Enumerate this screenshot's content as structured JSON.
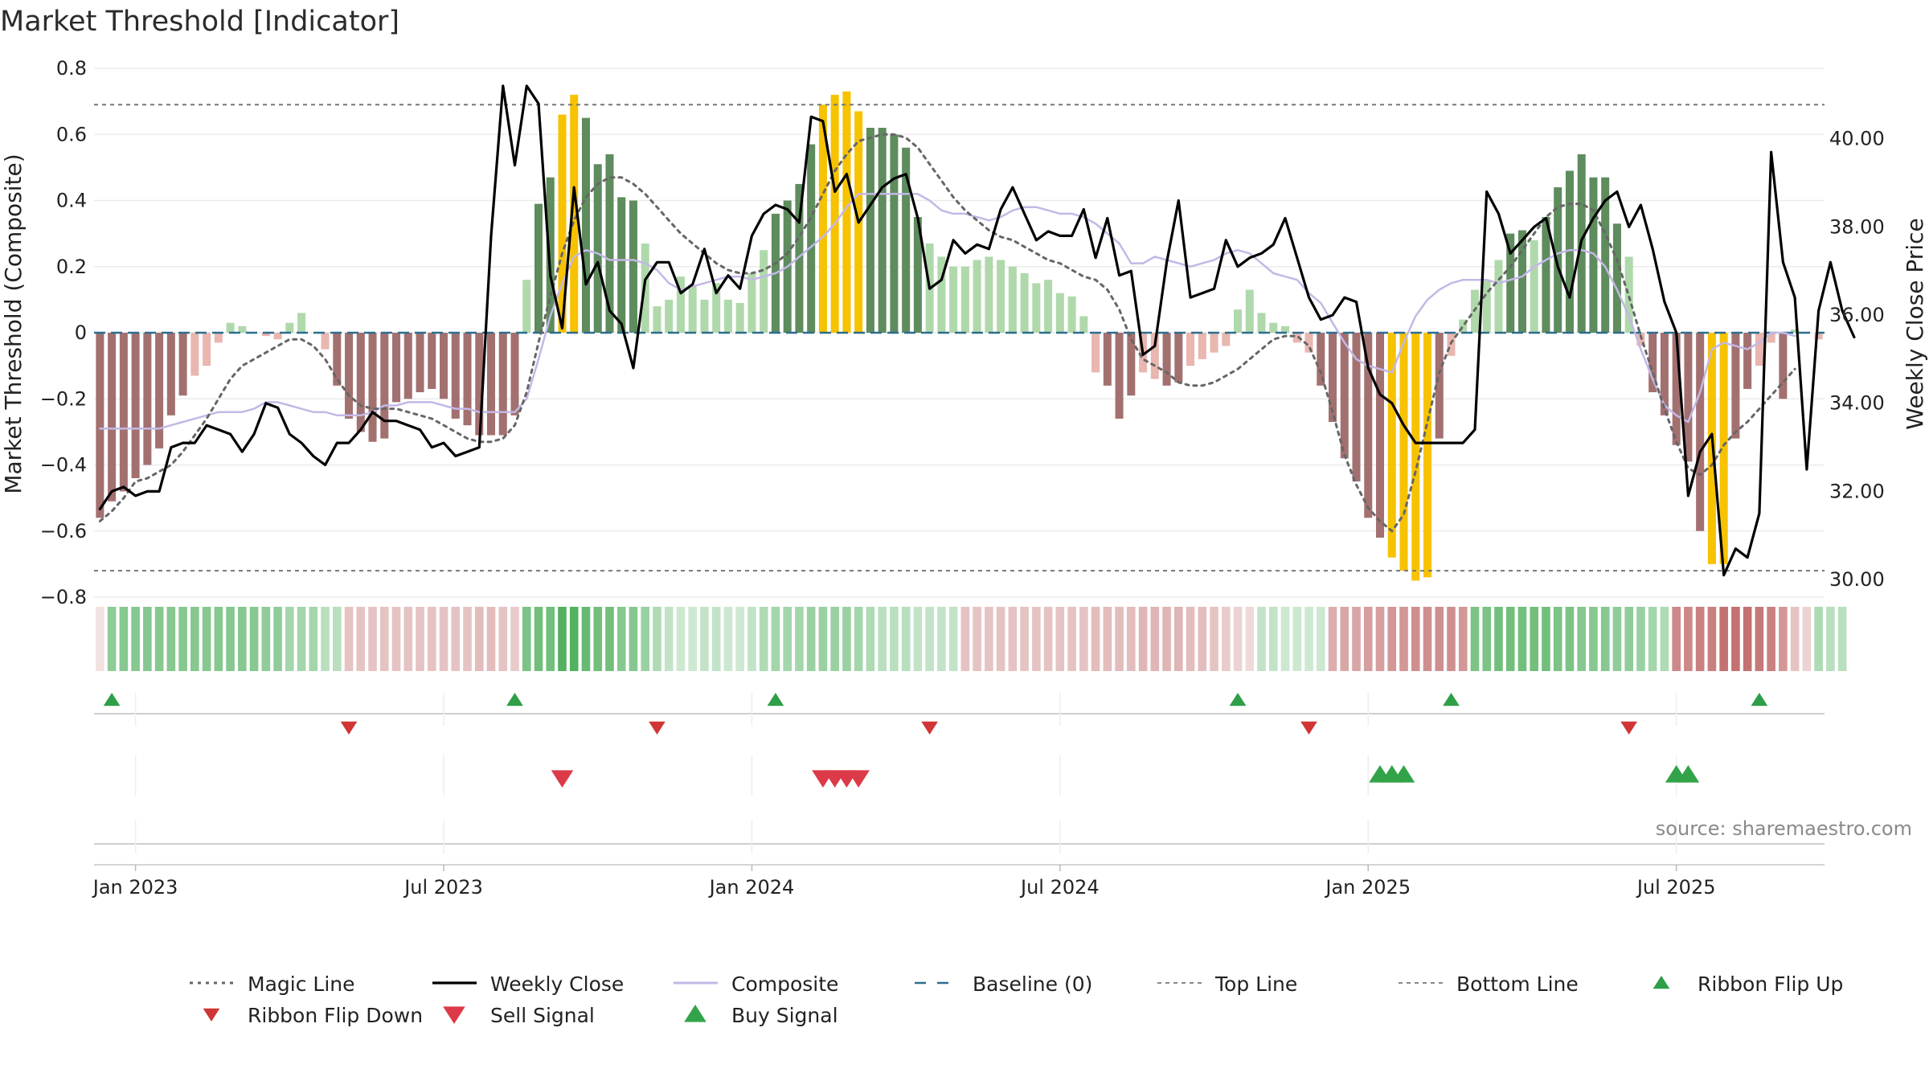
{
  "chart_data": {
    "type": "line",
    "title": "Market Threshold [Indicator]",
    "ylabel": "Market Threshold (Composite)",
    "y2label": "Weekly Close Price",
    "source": "source: sharemaestro.com",
    "ylim": [
      -0.8,
      0.8
    ],
    "y2lim": [
      29.6,
      41.6
    ],
    "yticks": [
      0.8,
      0.6,
      0.4,
      0.2,
      0,
      -0.2,
      -0.4,
      -0.6,
      -0.8
    ],
    "yticklabels": [
      "0.8",
      "0.6",
      "0.4",
      "0.2",
      "0",
      "−0.2",
      "−0.4",
      "−0.6",
      "−0.8"
    ],
    "y2ticks": [
      40,
      38,
      36,
      34,
      32,
      30
    ],
    "y2ticklabels": [
      "40.00",
      "38.00",
      "36.00",
      "34.00",
      "32.00",
      "30.00"
    ],
    "xticks": [
      {
        "week": 3,
        "label": "Jan 2023"
      },
      {
        "week": 29,
        "label": "Jul 2023"
      },
      {
        "week": 55,
        "label": "Jan 2024"
      },
      {
        "week": 81,
        "label": "Jul 2024"
      },
      {
        "week": 107,
        "label": "Jan 2025"
      },
      {
        "week": 133,
        "label": "Jul 2025"
      }
    ],
    "top_line": 0.69,
    "bottom_line": -0.72,
    "baseline": 0,
    "series": [
      {
        "name": "Composite",
        "axis": "left",
        "color": "#c3b8e6",
        "values": [
          -0.29,
          -0.29,
          -0.29,
          -0.29,
          -0.29,
          -0.29,
          -0.28,
          -0.27,
          -0.26,
          -0.25,
          -0.24,
          -0.24,
          -0.24,
          -0.23,
          -0.21,
          -0.21,
          -0.22,
          -0.23,
          -0.24,
          -0.24,
          -0.25,
          -0.25,
          -0.25,
          -0.24,
          -0.22,
          -0.22,
          -0.21,
          -0.21,
          -0.21,
          -0.22,
          -0.23,
          -0.23,
          -0.24,
          -0.24,
          -0.24,
          -0.24,
          -0.2,
          -0.08,
          0.05,
          0.15,
          0.23,
          0.25,
          0.24,
          0.22,
          0.22,
          0.22,
          0.21,
          0.19,
          0.15,
          0.13,
          0.14,
          0.15,
          0.16,
          0.17,
          0.17,
          0.16,
          0.17,
          0.18,
          0.2,
          0.23,
          0.26,
          0.29,
          0.33,
          0.38,
          0.42,
          0.42,
          0.42,
          0.42,
          0.42,
          0.42,
          0.4,
          0.37,
          0.36,
          0.36,
          0.35,
          0.34,
          0.35,
          0.37,
          0.38,
          0.38,
          0.37,
          0.36,
          0.36,
          0.35,
          0.33,
          0.3,
          0.27,
          0.21,
          0.21,
          0.23,
          0.22,
          0.21,
          0.2,
          0.21,
          0.22,
          0.24,
          0.25,
          0.24,
          0.21,
          0.18,
          0.17,
          0.16,
          0.12,
          0.09,
          0.03,
          -0.03,
          -0.08,
          -0.1,
          -0.11,
          -0.12,
          -0.03,
          0.05,
          0.1,
          0.13,
          0.15,
          0.16,
          0.16,
          0.16,
          0.15,
          0.16,
          0.17,
          0.2,
          0.22,
          0.24,
          0.25,
          0.25,
          0.24,
          0.2,
          0.13,
          0.05,
          -0.05,
          -0.14,
          -0.22,
          -0.25,
          -0.27,
          -0.18,
          -0.05,
          -0.03,
          -0.04,
          -0.05,
          -0.03,
          0.0,
          0.0,
          -0.01
        ]
      },
      {
        "name": "Magic Line",
        "axis": "left",
        "color": "#666666",
        "values": [
          -0.57,
          -0.54,
          -0.5,
          -0.45,
          -0.44,
          -0.42,
          -0.4,
          -0.36,
          -0.31,
          -0.26,
          -0.2,
          -0.14,
          -0.1,
          -0.08,
          -0.06,
          -0.04,
          -0.02,
          -0.02,
          -0.04,
          -0.08,
          -0.14,
          -0.19,
          -0.22,
          -0.23,
          -0.23,
          -0.23,
          -0.24,
          -0.25,
          -0.26,
          -0.28,
          -0.3,
          -0.32,
          -0.33,
          -0.33,
          -0.32,
          -0.28,
          -0.18,
          -0.03,
          0.11,
          0.24,
          0.34,
          0.41,
          0.45,
          0.47,
          0.47,
          0.45,
          0.42,
          0.38,
          0.34,
          0.3,
          0.27,
          0.24,
          0.21,
          0.19,
          0.18,
          0.18,
          0.19,
          0.21,
          0.24,
          0.29,
          0.35,
          0.42,
          0.49,
          0.54,
          0.58,
          0.59,
          0.6,
          0.6,
          0.59,
          0.56,
          0.51,
          0.46,
          0.41,
          0.37,
          0.34,
          0.31,
          0.29,
          0.28,
          0.26,
          0.24,
          0.22,
          0.21,
          0.19,
          0.17,
          0.16,
          0.13,
          0.07,
          -0.02,
          -0.08,
          -0.1,
          -0.12,
          -0.15,
          -0.16,
          -0.16,
          -0.15,
          -0.13,
          -0.11,
          -0.08,
          -0.05,
          -0.02,
          -0.01,
          -0.01,
          -0.04,
          -0.12,
          -0.24,
          -0.37,
          -0.46,
          -0.53,
          -0.57,
          -0.6,
          -0.55,
          -0.42,
          -0.27,
          -0.12,
          -0.03,
          0.02,
          0.07,
          0.12,
          0.16,
          0.2,
          0.25,
          0.3,
          0.35,
          0.38,
          0.39,
          0.39,
          0.37,
          0.3,
          0.22,
          0.11,
          -0.01,
          -0.12,
          -0.23,
          -0.33,
          -0.41,
          -0.43,
          -0.4,
          -0.34,
          -0.3,
          -0.27,
          -0.23,
          -0.19,
          -0.15,
          -0.11
        ]
      },
      {
        "name": "Weekly Close",
        "axis": "right",
        "color": "#000000",
        "values": [
          31.6,
          32.0,
          32.1,
          31.9,
          32.0,
          32.0,
          33.0,
          33.1,
          33.1,
          33.5,
          33.4,
          33.3,
          32.9,
          33.3,
          34.0,
          33.9,
          33.3,
          33.1,
          32.8,
          32.6,
          33.1,
          33.1,
          33.4,
          33.8,
          33.6,
          33.6,
          33.5,
          33.4,
          33.0,
          33.1,
          32.8,
          32.9,
          33.0,
          37.8,
          41.2,
          39.4,
          41.2,
          40.8,
          36.9,
          35.7,
          38.9,
          36.7,
          37.2,
          36.1,
          35.8,
          34.8,
          36.8,
          37.2,
          37.2,
          36.5,
          36.7,
          37.5,
          36.5,
          36.9,
          36.6,
          37.8,
          38.3,
          38.5,
          38.4,
          38.1,
          40.5,
          40.4,
          38.8,
          39.2,
          38.1,
          38.5,
          38.9,
          39.1,
          39.2,
          38.2,
          36.6,
          36.8,
          37.7,
          37.4,
          37.6,
          37.5,
          38.4,
          38.9,
          38.3,
          37.7,
          37.9,
          37.8,
          37.8,
          38.4,
          37.3,
          38.2,
          36.9,
          37.0,
          35.1,
          35.3,
          37.2,
          38.6,
          36.4,
          36.5,
          36.6,
          37.7,
          37.1,
          37.3,
          37.4,
          37.6,
          38.2,
          37.3,
          36.4,
          35.9,
          36.0,
          36.4,
          36.3,
          34.8,
          34.2,
          34.0,
          33.5,
          33.1,
          33.1,
          33.1,
          33.1,
          33.1,
          33.4,
          38.8,
          38.3,
          37.4,
          37.7,
          38.0,
          38.2,
          37.1,
          36.4,
          37.7,
          38.2,
          38.6,
          38.8,
          38.0,
          38.5,
          37.5,
          36.3,
          35.6,
          31.9,
          32.9,
          33.3,
          30.1,
          30.7,
          30.5,
          31.5,
          39.7,
          37.2,
          36.4,
          32.5,
          36.1,
          37.2,
          36.1,
          35.5
        ]
      }
    ],
    "bars": {
      "name": "Histogram",
      "legend_colors": {
        "deep_negative": "#a37070",
        "light_negative": "#e9b6b0",
        "deep_positive": "#5e8c5d",
        "light_positive": "#b0d9ab",
        "extreme": "#f7c200"
      },
      "values": [
        -0.56,
        -0.51,
        -0.48,
        -0.44,
        -0.4,
        -0.35,
        -0.25,
        -0.19,
        -0.13,
        -0.1,
        -0.03,
        0.03,
        0.02,
        0.0,
        -0.01,
        -0.02,
        0.03,
        0.06,
        0.0,
        -0.05,
        -0.16,
        -0.26,
        -0.3,
        -0.33,
        -0.32,
        -0.21,
        -0.2,
        -0.18,
        -0.17,
        -0.2,
        -0.26,
        -0.28,
        -0.31,
        -0.31,
        -0.31,
        -0.25,
        0.16,
        0.39,
        0.47,
        0.66,
        0.72,
        0.65,
        0.51,
        0.54,
        0.41,
        0.4,
        0.27,
        0.08,
        0.1,
        0.17,
        0.14,
        0.1,
        0.15,
        0.1,
        0.09,
        0.18,
        0.25,
        0.36,
        0.4,
        0.45,
        0.57,
        0.69,
        0.72,
        0.73,
        0.67,
        0.62,
        0.62,
        0.6,
        0.56,
        0.35,
        0.27,
        0.23,
        0.2,
        0.2,
        0.22,
        0.23,
        0.22,
        0.2,
        0.18,
        0.15,
        0.16,
        0.12,
        0.11,
        0.05,
        -0.12,
        -0.16,
        -0.26,
        -0.19,
        -0.12,
        -0.14,
        -0.16,
        -0.15,
        -0.1,
        -0.08,
        -0.06,
        -0.04,
        0.07,
        0.13,
        0.06,
        0.03,
        0.02,
        -0.03,
        -0.06,
        -0.16,
        -0.27,
        -0.38,
        -0.45,
        -0.56,
        -0.62,
        -0.68,
        -0.72,
        -0.75,
        -0.74,
        -0.32,
        -0.07,
        0.04,
        0.13,
        0.16,
        0.22,
        0.3,
        0.31,
        0.28,
        0.35,
        0.44,
        0.49,
        0.54,
        0.47,
        0.47,
        0.33,
        0.23,
        -0.04,
        -0.18,
        -0.25,
        -0.34,
        -0.39,
        -0.6,
        -0.7,
        -0.7,
        -0.32,
        -0.17,
        -0.1,
        -0.03,
        -0.2,
        0.01,
        0.0,
        -0.02
      ]
    },
    "ribbon": {
      "name": "Trend Ribbon",
      "green_color": "#35a344",
      "red_color": "#c06a6a",
      "values": [
        -0.2,
        0.55,
        0.6,
        0.6,
        0.6,
        0.6,
        0.6,
        0.6,
        0.6,
        0.6,
        0.6,
        0.6,
        0.6,
        0.6,
        0.55,
        0.55,
        0.45,
        0.45,
        0.45,
        0.35,
        0.35,
        -0.4,
        -0.4,
        -0.4,
        -0.4,
        -0.4,
        -0.4,
        -0.4,
        -0.4,
        -0.4,
        -0.4,
        -0.4,
        -0.45,
        -0.45,
        -0.4,
        -0.35,
        0.65,
        0.7,
        0.7,
        0.85,
        0.85,
        0.75,
        0.7,
        0.7,
        0.6,
        0.6,
        0.5,
        0.4,
        0.3,
        0.25,
        0.25,
        0.3,
        0.3,
        0.25,
        0.25,
        0.3,
        0.4,
        0.45,
        0.45,
        0.45,
        0.5,
        0.5,
        0.5,
        0.5,
        0.45,
        0.4,
        0.35,
        0.35,
        0.35,
        0.3,
        0.3,
        0.3,
        0.3,
        -0.4,
        -0.4,
        -0.4,
        -0.4,
        -0.4,
        -0.4,
        -0.4,
        -0.4,
        -0.4,
        -0.4,
        -0.4,
        -0.45,
        -0.45,
        -0.45,
        -0.45,
        -0.5,
        -0.5,
        -0.5,
        -0.5,
        -0.45,
        -0.45,
        -0.4,
        -0.35,
        -0.3,
        -0.25,
        0.3,
        0.3,
        0.25,
        0.25,
        0.25,
        0.25,
        -0.55,
        -0.6,
        -0.6,
        -0.65,
        -0.65,
        -0.7,
        -0.7,
        -0.75,
        -0.75,
        -0.75,
        -0.75,
        -0.7,
        0.65,
        0.65,
        0.7,
        0.7,
        0.7,
        0.7,
        0.7,
        0.65,
        0.65,
        0.6,
        0.6,
        0.6,
        0.55,
        0.55,
        0.5,
        0.45,
        0.4,
        -0.8,
        -0.8,
        -0.85,
        -0.85,
        -0.95,
        -0.95,
        -0.95,
        -0.9,
        -0.85,
        -0.7,
        -0.4,
        -0.3,
        0.4,
        0.35,
        0.35
      ]
    },
    "markers": {
      "ribbon_flip_up": [
        1,
        35,
        57,
        96,
        114,
        140
      ],
      "ribbon_flip_down": [
        21,
        47,
        70,
        102,
        129
      ],
      "sell_signal": [
        39,
        61,
        62,
        63,
        64
      ],
      "buy_signal": [
        108,
        109,
        110,
        133,
        134
      ]
    },
    "legend": [
      {
        "key": "magic",
        "label": "Magic Line"
      },
      {
        "key": "close",
        "label": "Weekly Close"
      },
      {
        "key": "composite",
        "label": "Composite"
      },
      {
        "key": "baseline",
        "label": "Baseline (0)"
      },
      {
        "key": "top",
        "label": "Top Line"
      },
      {
        "key": "bottom",
        "label": "Bottom Line"
      },
      {
        "key": "flipup",
        "label": "Ribbon Flip Up"
      },
      {
        "key": "flipdown",
        "label": "Ribbon Flip Down"
      },
      {
        "key": "sell",
        "label": "Sell Signal"
      },
      {
        "key": "buy",
        "label": "Buy Signal"
      }
    ],
    "colors": {
      "baseline": "#2c6e8e",
      "ref_lines": "#777777",
      "flip_up": "#2e9e47",
      "flip_down": "#d03636",
      "sell": "#dc3a48",
      "buy": "#32a349"
    }
  }
}
